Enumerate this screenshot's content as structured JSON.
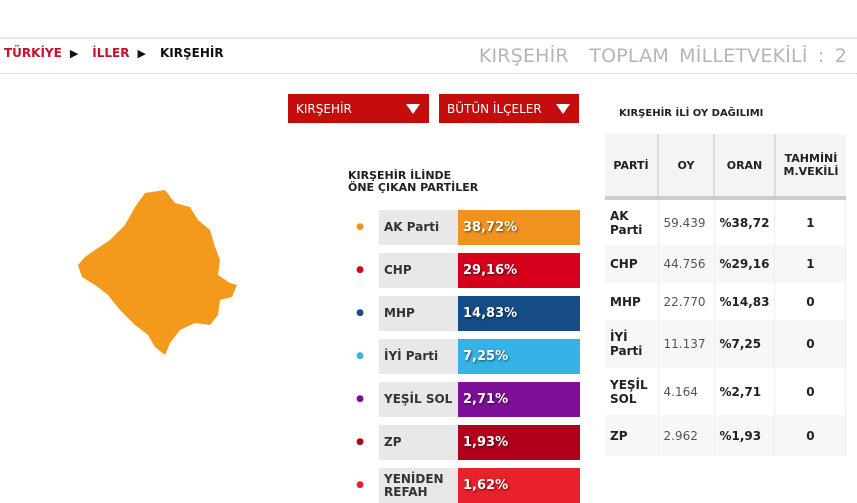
{
  "breadcrumb": {
    "items": [
      "TÜRKİYE",
      "İLLER",
      "KIRŞEHİR"
    ]
  },
  "header": {
    "title": "KIRŞEHİR  TOPLAM MİLLETVEKİLİ : 2"
  },
  "selects": {
    "province": "KIRŞEHİR",
    "district": "BÜTÜN İLÇELER"
  },
  "map": {
    "fill": "#f39a1c"
  },
  "leading": {
    "title_line1": "KIRŞEHİR İLİNDE",
    "title_line2": "ÖNE ÇIKAN PARTİLER",
    "parties": [
      {
        "name": "AK Parti",
        "pct": "38,72%",
        "color": "#f0931e",
        "icon": "ak-parti-logo-icon"
      },
      {
        "name": "CHP",
        "pct": "29,16%",
        "color": "#d6001c",
        "icon": "chp-logo-icon"
      },
      {
        "name": "MHP",
        "pct": "14,83%",
        "color": "#164d87",
        "icon": "mhp-logo-icon"
      },
      {
        "name": "İYİ Parti",
        "pct": "7,25%",
        "color": "#35b3e6",
        "icon": "iyi-parti-logo-icon"
      },
      {
        "name": "YEŞİL SOL",
        "pct": "2,71%",
        "color": "#7f0f99",
        "icon": "yesil-sol-logo-icon"
      },
      {
        "name": "ZP",
        "pct": "1,93%",
        "color": "#b0001c",
        "icon": "zafer-partisi-logo-icon"
      },
      {
        "name": "YENİDEN REFAH",
        "pct": "1,62%",
        "color": "#e8212a",
        "icon": "yeniden-refah-logo-icon"
      }
    ]
  },
  "table": {
    "title": "KIRŞEHİR İLİ OY DAĞILIMI",
    "headers": [
      "PARTİ",
      "OY",
      "ORAN",
      "TAHMİNİ M.VEKİLİ"
    ],
    "rows": [
      [
        "AK Parti",
        "59.439",
        "%38,72",
        "1"
      ],
      [
        "CHP",
        "44.756",
        "%29,16",
        "1"
      ],
      [
        "MHP",
        "22.770",
        "%14,83",
        "0"
      ],
      [
        "İYİ Parti",
        "11.137",
        "%7,25",
        "0"
      ],
      [
        "YEŞİL SOL",
        "4.164",
        "%2,71",
        "0"
      ],
      [
        "ZP",
        "2.962",
        "%1,93",
        "0"
      ]
    ]
  }
}
